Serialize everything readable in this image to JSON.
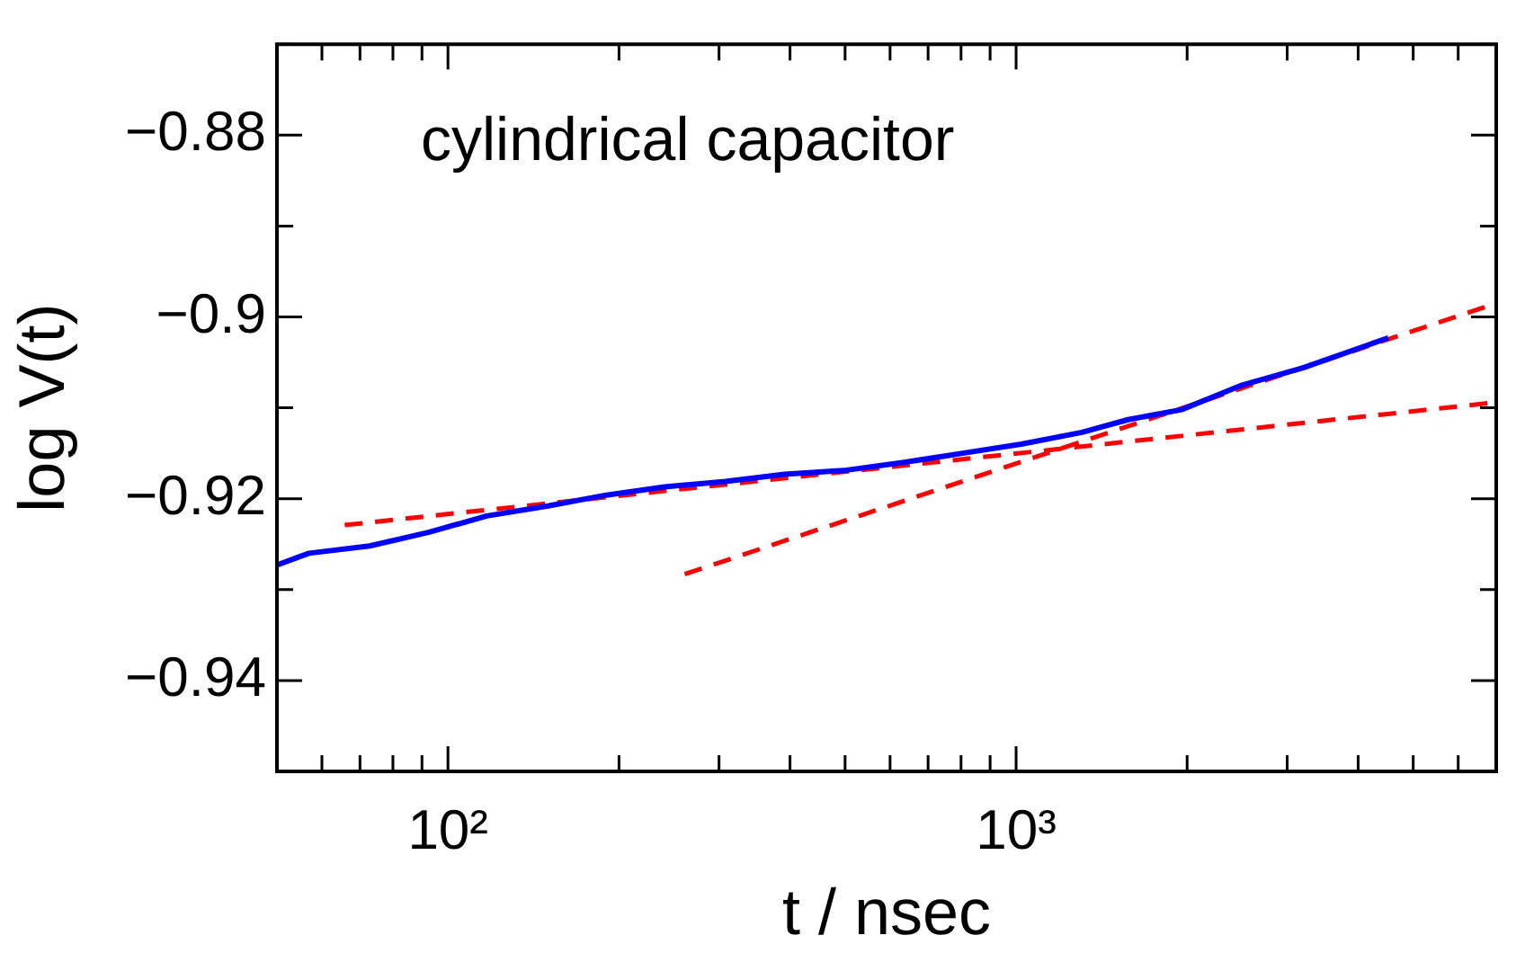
{
  "chart_data": {
    "type": "line",
    "xlabel": "t / nsec",
    "ylabel": "log V(t)",
    "annotations": [
      "cylindrical capacitor"
    ],
    "log": "x",
    "marker": "none",
    "xlim": [
      50,
      7000
    ],
    "ylim": [
      -0.95,
      -0.87
    ],
    "xticks": [
      {
        "value": 60,
        "label": null
      },
      {
        "value": 70,
        "label": null
      },
      {
        "value": 80,
        "label": null
      },
      {
        "value": 90,
        "label": null
      },
      {
        "value": 100,
        "label": "10²"
      },
      {
        "value": 200,
        "label": null
      },
      {
        "value": 300,
        "label": null
      },
      {
        "value": 400,
        "label": null
      },
      {
        "value": 500,
        "label": null
      },
      {
        "value": 600,
        "label": null
      },
      {
        "value": 700,
        "label": null
      },
      {
        "value": 800,
        "label": null
      },
      {
        "value": 900,
        "label": null
      },
      {
        "value": 1000,
        "label": "10³"
      },
      {
        "value": 2000,
        "label": null
      },
      {
        "value": 3000,
        "label": null
      },
      {
        "value": 4000,
        "label": null
      },
      {
        "value": 5000,
        "label": null
      },
      {
        "value": 6000,
        "label": null
      },
      {
        "value": 7000,
        "label": null
      }
    ],
    "yticks": [
      {
        "value": -0.95,
        "label": null
      },
      {
        "value": -0.94,
        "label": "−0.94"
      },
      {
        "value": -0.93,
        "label": null
      },
      {
        "value": -0.92,
        "label": "−0.92"
      },
      {
        "value": -0.91,
        "label": null
      },
      {
        "value": -0.9,
        "label": "−0.9"
      },
      {
        "value": -0.89,
        "label": null
      },
      {
        "value": -0.88,
        "label": "−0.88"
      },
      {
        "value": -0.87,
        "label": null
      }
    ],
    "series": [
      {
        "color": "#0000ff",
        "line_style": "solid",
        "x": [
          50,
          56.9,
          72.8,
          92.4,
          117,
          150,
          190,
          241,
          308,
          391,
          497,
          635,
          805,
          1021,
          1306,
          1574,
          1956,
          2500,
          3199,
          4520
        ],
        "values": [
          -0.9273,
          -0.926,
          -0.9252,
          -0.9237,
          -0.9219,
          -0.9208,
          -0.9196,
          -0.9187,
          -0.9181,
          -0.9173,
          -0.9169,
          -0.916,
          -0.915,
          -0.914,
          -0.9127,
          -0.9113,
          -0.9102,
          -0.9075,
          -0.9056,
          -0.9023
        ]
      },
      {
        "color": "#ff0000",
        "line_style": "dashed",
        "x": [
          65.8,
          7000
        ],
        "values": [
          -0.9229,
          -0.9094
        ]
      },
      {
        "color": "#ff0000",
        "line_style": "dashed",
        "x": [
          261,
          7000
        ],
        "values": [
          -0.9283,
          -0.8985
        ]
      }
    ]
  }
}
